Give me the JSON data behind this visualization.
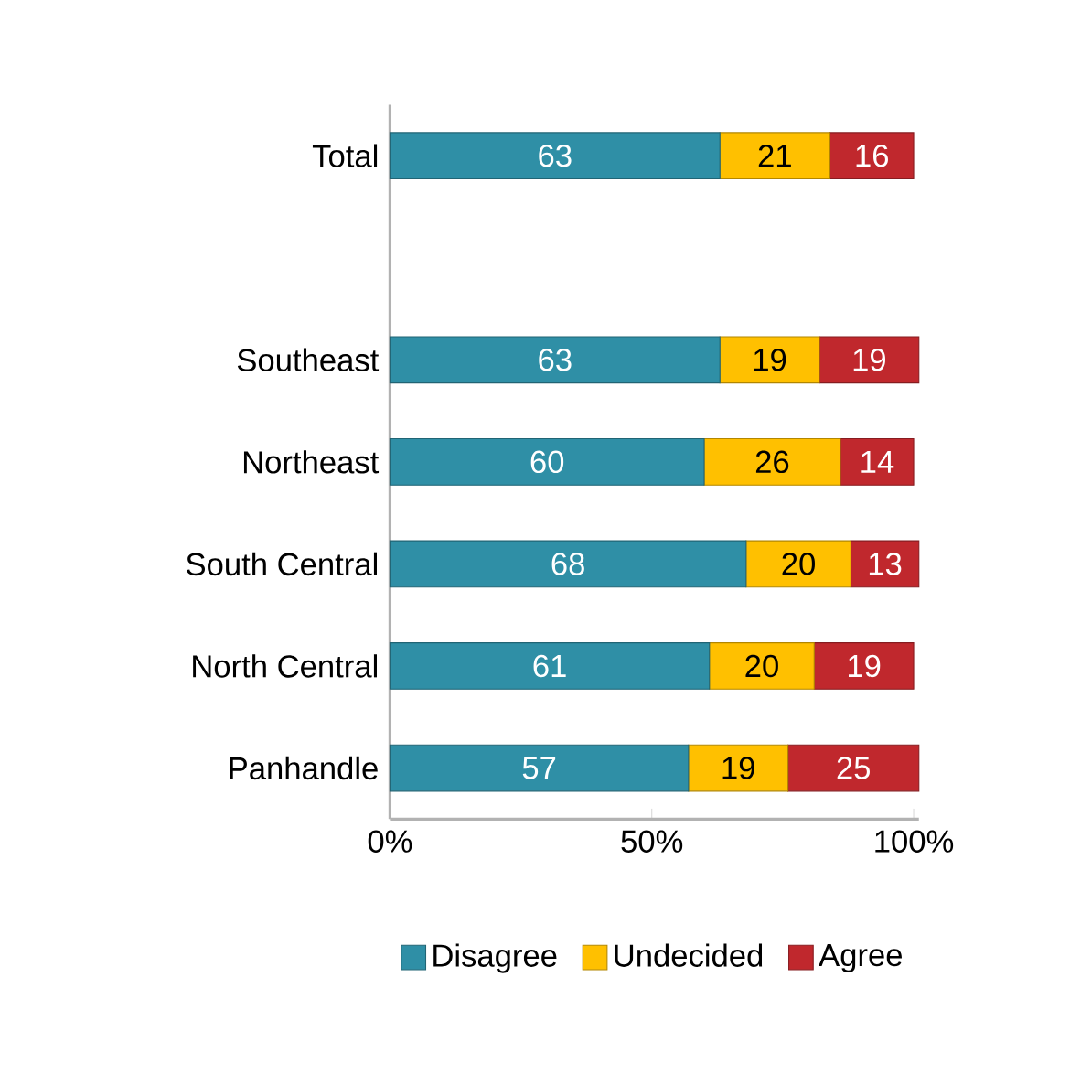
{
  "chart_data": {
    "type": "bar",
    "orientation": "horizontal",
    "stacked": true,
    "categories": [
      "Total",
      null,
      "Southeast",
      "Northeast",
      "South Central",
      "North Central",
      "Panhandle"
    ],
    "series": [
      {
        "name": "Disagree",
        "color": "#2f8fa6",
        "values": [
          63,
          null,
          63,
          60,
          68,
          61,
          57
        ]
      },
      {
        "name": "Undecided",
        "color": "#ffc000",
        "values": [
          21,
          null,
          19,
          26,
          20,
          20,
          19
        ]
      },
      {
        "name": "Agree",
        "color": "#c0282d",
        "values": [
          16,
          null,
          19,
          14,
          13,
          19,
          25
        ]
      }
    ],
    "xlim": [
      0,
      101
    ],
    "xticks": [
      {
        "value": 0,
        "label": "0%"
      },
      {
        "value": 50,
        "label": "50%"
      },
      {
        "value": 100,
        "label": "100%"
      }
    ],
    "data_labels": true,
    "legend": "bottom",
    "grid": false
  }
}
